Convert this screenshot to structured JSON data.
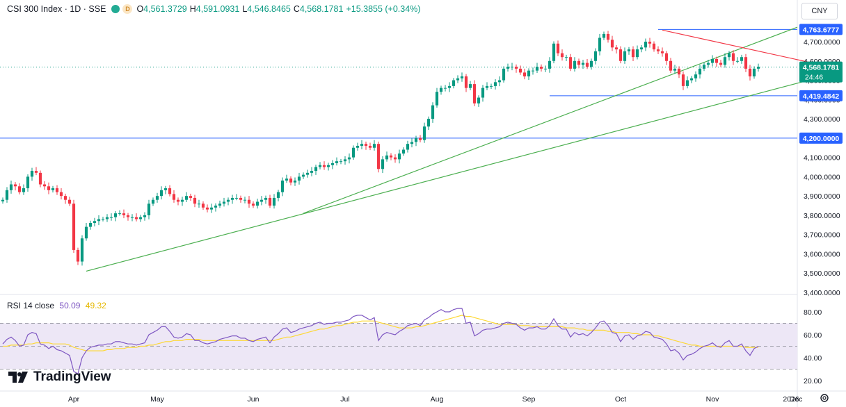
{
  "header": {
    "symbol": "CSI 300 Index · 1D · SSE",
    "badge": "D",
    "open_label": "O",
    "open": "4,561.3729",
    "high_label": "H",
    "high": "4,591.0931",
    "low_label": "L",
    "low": "4,546.8465",
    "close_label": "C",
    "close": "4,568.1781",
    "change": "+15.3855 (+0.34%)"
  },
  "currency": "CNY",
  "rsi_header": {
    "label": "RSI 14 close",
    "rsi": "50.09",
    "ma": "49.32"
  },
  "brand": "TradingView",
  "icons": [
    "tradingview-logo-icon",
    "gear-icon",
    "status-dot-icon"
  ],
  "colors": {
    "up": "#089981",
    "down": "#f23645",
    "blue_line": "#2962ff",
    "green_trend": "#4caf50",
    "red_trend": "#f23645",
    "rsi_line": "#7e57c2",
    "rsi_ma": "#fdd835",
    "rsi_band": "#ede7f6"
  },
  "chart_data": [
    {
      "type": "candlestick",
      "title": "CSI 300 Index · 1D · SSE",
      "x_labels": [
        "Apr",
        "May",
        "Jun",
        "Jul",
        "Aug",
        "Sep",
        "Oct",
        "Nov",
        "Dec",
        "2026"
      ],
      "y_ticks": [
        "3,400.0000",
        "3,500.0000",
        "3,600.0000",
        "3,700.0000",
        "3,800.0000",
        "3,900.0000",
        "4,000.0000",
        "4,100.0000",
        "4,200.0000",
        "4,300.0000",
        "4,400.0000",
        "4,500.0000",
        "4,600.0000",
        "4,700.0000"
      ],
      "ylim": [
        3400,
        4780
      ],
      "closes": [
        3880,
        3930,
        3960,
        3950,
        3920,
        3940,
        4000,
        4030,
        4020,
        3960,
        3950,
        3930,
        3940,
        3920,
        3900,
        3880,
        3860,
        3620,
        3560,
        3680,
        3740,
        3760,
        3770,
        3780,
        3780,
        3790,
        3790,
        3810,
        3810,
        3800,
        3790,
        3790,
        3780,
        3790,
        3800,
        3860,
        3880,
        3900,
        3930,
        3940,
        3910,
        3880,
        3870,
        3880,
        3900,
        3890,
        3860,
        3860,
        3840,
        3830,
        3840,
        3850,
        3860,
        3870,
        3880,
        3890,
        3890,
        3880,
        3880,
        3860,
        3850,
        3870,
        3880,
        3890,
        3850,
        3890,
        3920,
        3980,
        3990,
        3970,
        3980,
        4000,
        4010,
        4020,
        4030,
        4050,
        4060,
        4050,
        4060,
        4070,
        4080,
        4080,
        4090,
        4100,
        4150,
        4160,
        4170,
        4160,
        4150,
        4170,
        4040,
        4090,
        4110,
        4100,
        4090,
        4120,
        4140,
        4170,
        4180,
        4200,
        4190,
        4260,
        4300,
        4370,
        4440,
        4460,
        4460,
        4470,
        4500,
        4510,
        4520,
        4460,
        4480,
        4380,
        4410,
        4460,
        4470,
        4470,
        4490,
        4500,
        4560,
        4570,
        4570,
        4560,
        4540,
        4520,
        4550,
        4550,
        4570,
        4560,
        4560,
        4600,
        4690,
        4640,
        4620,
        4620,
        4560,
        4600,
        4580,
        4590,
        4570,
        4600,
        4650,
        4720,
        4740,
        4710,
        4670,
        4660,
        4600,
        4650,
        4660,
        4620,
        4660,
        4670,
        4700,
        4690,
        4660,
        4650,
        4640,
        4600,
        4550,
        4560,
        4530,
        4470,
        4500,
        4510,
        4530,
        4560,
        4580,
        4590,
        4610,
        4590,
        4580,
        4620,
        4640,
        4600,
        4600,
        4620,
        4560,
        4520,
        4560,
        4570
      ],
      "annotations": {
        "resistance": "4,763.6777",
        "last_price": "4,568.1781",
        "countdown": "24:46",
        "support": "4,419.4842",
        "level": "4,200.0000"
      }
    },
    {
      "type": "line",
      "title": "RSI 14 close",
      "y_ticks": [
        "20.00",
        "40.00",
        "60.00",
        "80.00"
      ],
      "ylim": [
        16,
        88
      ],
      "bands": [
        30,
        50,
        70
      ],
      "series": [
        {
          "name": "RSI",
          "values": [
            52,
            56,
            58,
            55,
            50,
            51,
            60,
            62,
            61,
            52,
            51,
            48,
            50,
            47,
            46,
            44,
            42,
            28,
            26,
            40,
            46,
            49,
            50,
            51,
            51,
            52,
            52,
            54,
            54,
            53,
            52,
            52,
            51,
            52,
            53,
            60,
            62,
            64,
            67,
            67,
            63,
            58,
            57,
            58,
            61,
            60,
            55,
            55,
            53,
            52,
            53,
            54,
            56,
            57,
            58,
            59,
            59,
            57,
            57,
            55,
            54,
            56,
            57,
            58,
            53,
            58,
            61,
            65,
            66,
            62,
            63,
            65,
            66,
            67,
            68,
            70,
            71,
            69,
            70,
            70,
            71,
            71,
            72,
            73,
            76,
            77,
            77,
            75,
            73,
            75,
            55,
            60,
            62,
            61,
            60,
            63,
            65,
            68,
            69,
            70,
            68,
            73,
            75,
            78,
            80,
            82,
            80,
            80,
            82,
            83,
            83,
            70,
            71,
            59,
            61,
            64,
            65,
            65,
            66,
            67,
            70,
            71,
            70,
            69,
            66,
            64,
            66,
            66,
            67,
            65,
            65,
            68,
            74,
            68,
            65,
            65,
            58,
            62,
            60,
            61,
            59,
            62,
            66,
            71,
            72,
            68,
            62,
            61,
            54,
            59,
            60,
            56,
            59,
            60,
            63,
            62,
            58,
            57,
            56,
            52,
            46,
            47,
            44,
            38,
            42,
            43,
            45,
            48,
            50,
            51,
            53,
            50,
            49,
            53,
            55,
            50,
            50,
            52,
            46,
            42,
            48,
            50
          ]
        },
        {
          "name": "MA",
          "values": [
            50,
            50,
            51,
            51,
            51,
            51,
            52,
            52,
            53,
            53,
            53,
            53,
            52,
            52,
            52,
            52,
            51,
            49,
            48,
            47,
            46,
            46,
            46,
            46,
            46,
            47,
            47,
            48,
            48,
            48,
            49,
            49,
            49,
            50,
            50,
            51,
            51,
            52,
            53,
            54,
            54,
            55,
            55,
            55,
            56,
            56,
            56,
            56,
            55,
            55,
            55,
            55,
            55,
            55,
            55,
            55,
            55,
            55,
            55,
            55,
            55,
            55,
            55,
            55,
            55,
            55,
            56,
            57,
            58,
            58,
            59,
            60,
            61,
            62,
            63,
            64,
            65,
            65,
            66,
            67,
            68,
            68,
            69,
            70,
            71,
            71,
            72,
            72,
            72,
            72,
            71,
            70,
            69,
            68,
            67,
            66,
            66,
            66,
            66,
            67,
            67,
            68,
            69,
            70,
            71,
            72,
            73,
            74,
            75,
            76,
            77,
            76,
            76,
            75,
            74,
            73,
            72,
            71,
            70,
            69,
            69,
            69,
            69,
            69,
            68,
            68,
            68,
            67,
            67,
            67,
            67,
            67,
            67,
            67,
            67,
            66,
            66,
            66,
            65,
            65,
            64,
            64,
            64,
            64,
            64,
            63,
            63,
            62,
            62,
            62,
            62,
            61,
            61,
            60,
            60,
            60,
            59,
            59,
            58,
            57,
            56,
            55,
            54,
            53,
            52,
            51,
            51,
            50,
            50,
            50,
            50,
            50,
            50,
            50,
            50,
            50,
            50,
            50,
            49,
            49,
            49,
            49
          ]
        }
      ]
    }
  ]
}
